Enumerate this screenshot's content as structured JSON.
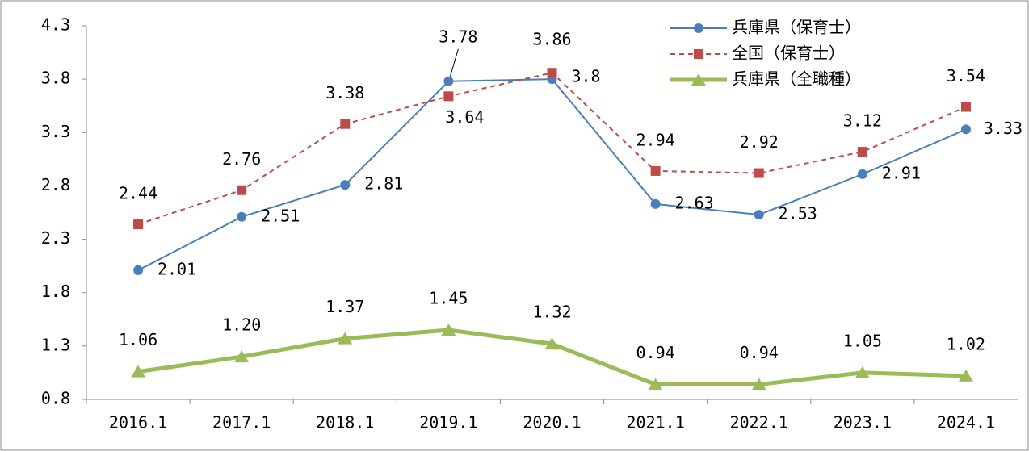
{
  "chart_data": {
    "type": "line",
    "categories": [
      "2016.1",
      "2017.1",
      "2018.1",
      "2019.1",
      "2020.1",
      "2021.1",
      "2022.1",
      "2023.1",
      "2024.1"
    ],
    "series": [
      {
        "name": "兵庫県（保育士）",
        "color": "#4a7ebb",
        "values": [
          2.01,
          2.51,
          2.81,
          3.78,
          3.8,
          2.63,
          2.53,
          2.91,
          3.33
        ]
      },
      {
        "name": "全国（保育士）",
        "color": "#be4b48",
        "values": [
          2.44,
          2.76,
          3.38,
          3.64,
          3.86,
          2.94,
          2.92,
          3.12,
          3.54
        ]
      },
      {
        "name": "兵庫県（全職種）",
        "color": "#9bbb59",
        "values": [
          1.06,
          1.2,
          1.37,
          1.45,
          1.32,
          0.94,
          0.94,
          1.05,
          1.02
        ],
        "value_labels": [
          "1.06",
          "1.20",
          "1.37",
          "1.45",
          "1.32",
          "0.94",
          "0.94",
          "1.05",
          "1.02"
        ]
      }
    ],
    "ylim": [
      0.8,
      4.3
    ],
    "yticks": [
      0.8,
      1.3,
      1.8,
      2.3,
      2.8,
      3.3,
      3.8,
      4.3
    ],
    "grid": false,
    "legend": "top-right"
  }
}
